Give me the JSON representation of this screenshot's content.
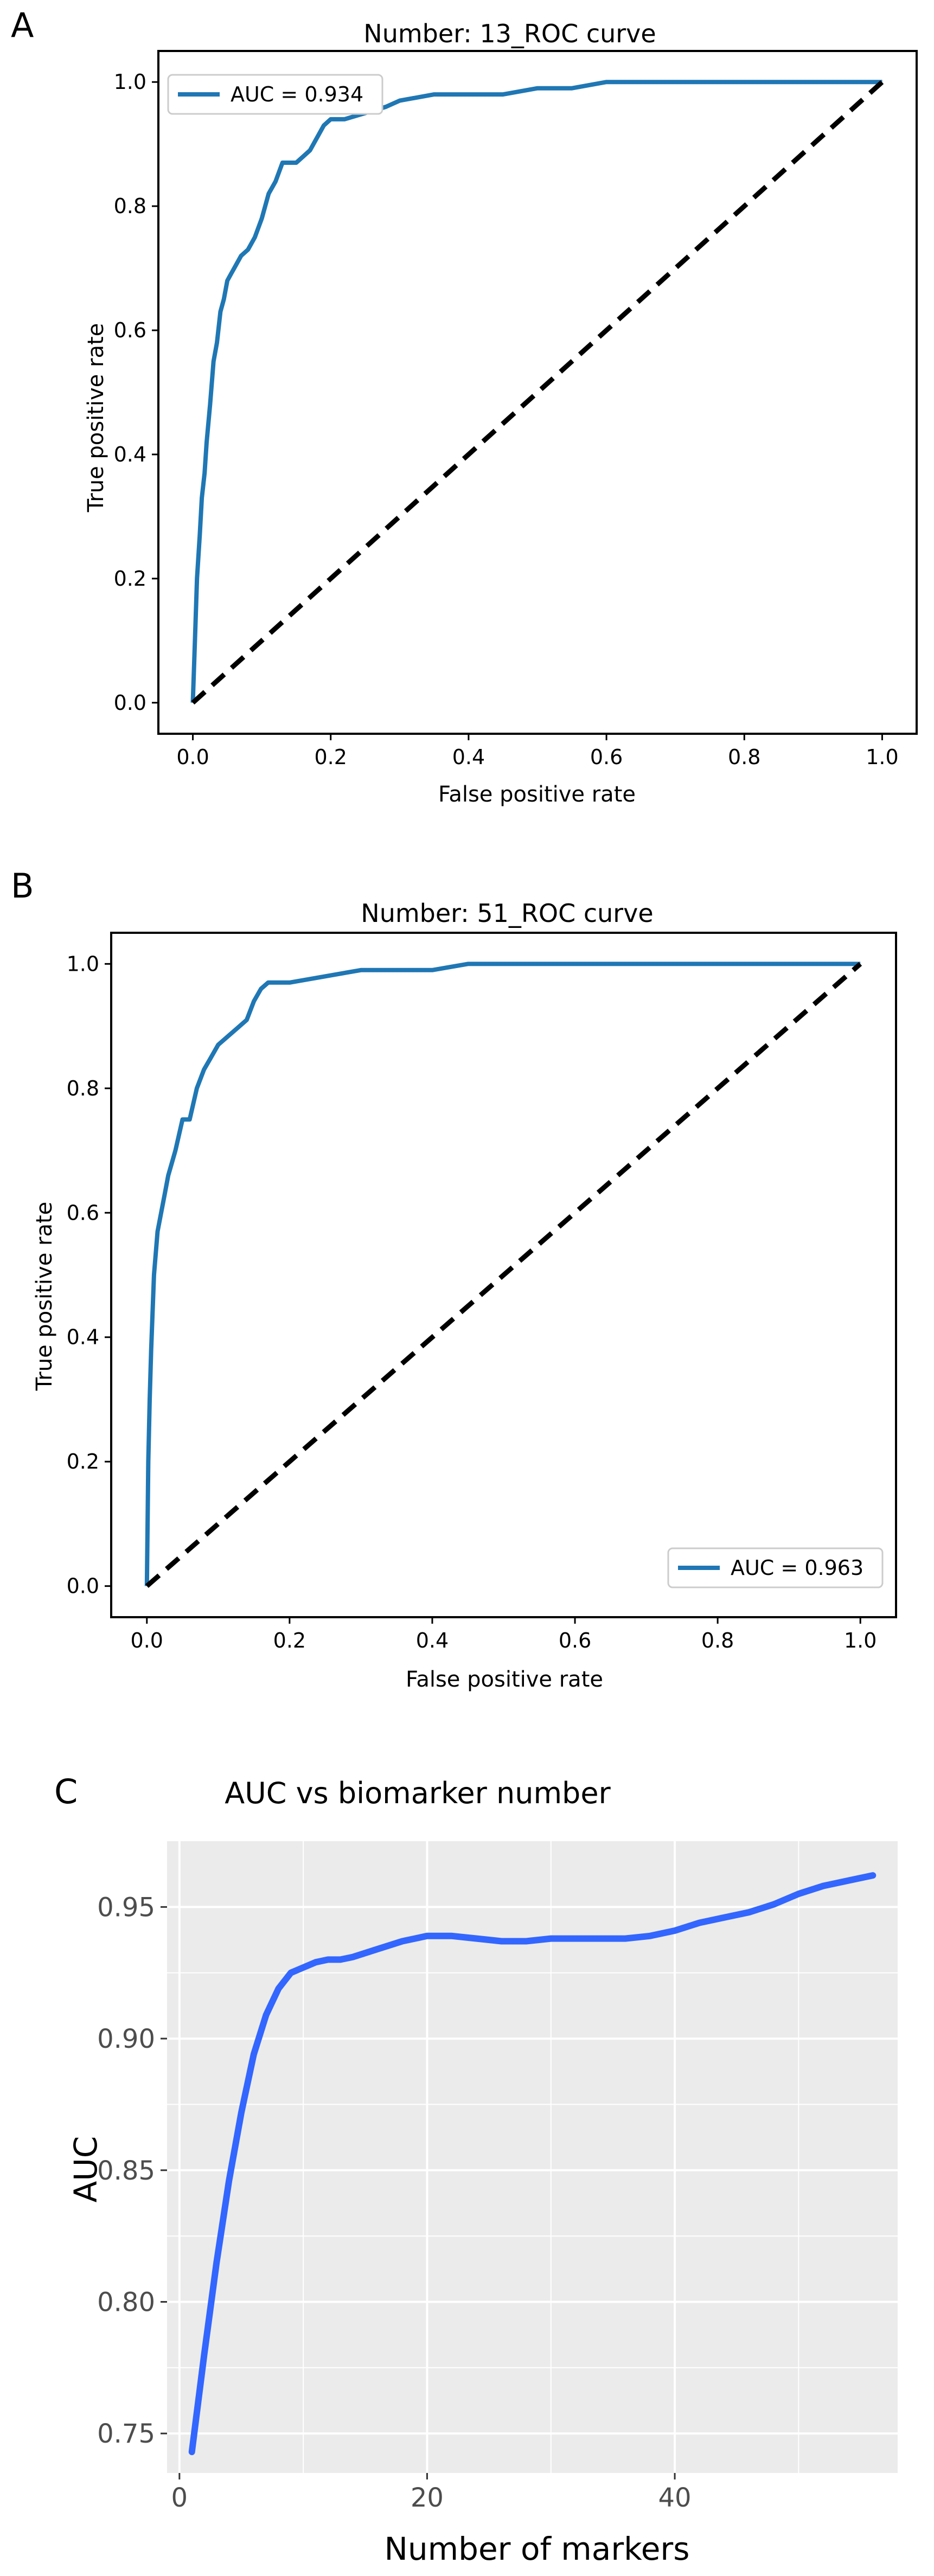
{
  "chart_data": [
    {
      "panel": "A",
      "type": "line",
      "title": "Number: 13_ROC curve",
      "xlabel": "False positive rate",
      "ylabel": "True positive rate",
      "xlim": [
        -0.05,
        1.05
      ],
      "ylim": [
        -0.05,
        1.05
      ],
      "xticks": [
        "0.0",
        "0.2",
        "0.4",
        "0.6",
        "0.8",
        "1.0"
      ],
      "yticks": [
        "0.0",
        "0.2",
        "0.4",
        "0.6",
        "0.8",
        "1.0"
      ],
      "legend": {
        "label": "AUC = 0.934",
        "position": "top-left"
      },
      "series": [
        {
          "name": "AUC = 0.934",
          "color": "#1f77b4",
          "x": [
            0,
            0.003,
            0.006,
            0.01,
            0.013,
            0.017,
            0.02,
            0.025,
            0.03,
            0.035,
            0.04,
            0.045,
            0.05,
            0.055,
            0.06,
            0.07,
            0.08,
            0.09,
            0.1,
            0.11,
            0.12,
            0.13,
            0.14,
            0.15,
            0.16,
            0.17,
            0.18,
            0.19,
            0.2,
            0.22,
            0.25,
            0.28,
            0.3,
            0.35,
            0.4,
            0.45,
            0.5,
            0.55,
            0.6,
            0.7,
            0.8,
            0.9,
            1.0
          ],
          "y": [
            0,
            0.1,
            0.2,
            0.27,
            0.33,
            0.37,
            0.42,
            0.48,
            0.55,
            0.58,
            0.63,
            0.65,
            0.68,
            0.69,
            0.7,
            0.72,
            0.73,
            0.75,
            0.78,
            0.82,
            0.84,
            0.87,
            0.87,
            0.87,
            0.88,
            0.89,
            0.91,
            0.93,
            0.94,
            0.94,
            0.95,
            0.96,
            0.97,
            0.98,
            0.98,
            0.98,
            0.99,
            0.99,
            1.0,
            1.0,
            1.0,
            1.0,
            1.0
          ]
        },
        {
          "name": "chance",
          "color": "#000000",
          "dashed": true,
          "x": [
            0,
            1
          ],
          "y": [
            0,
            1
          ]
        }
      ]
    },
    {
      "panel": "B",
      "type": "line",
      "title": "Number: 51_ROC curve",
      "xlabel": "False positive rate",
      "ylabel": "True positive rate",
      "xlim": [
        -0.05,
        1.05
      ],
      "ylim": [
        -0.05,
        1.05
      ],
      "xticks": [
        "0.0",
        "0.2",
        "0.4",
        "0.6",
        "0.8",
        "1.0"
      ],
      "yticks": [
        "0.0",
        "0.2",
        "0.4",
        "0.6",
        "0.8",
        "1.0"
      ],
      "legend": {
        "label": "AUC = 0.963",
        "position": "bottom-right"
      },
      "series": [
        {
          "name": "AUC = 0.963",
          "color": "#1f77b4",
          "x": [
            0,
            0.002,
            0.004,
            0.006,
            0.008,
            0.01,
            0.015,
            0.02,
            0.025,
            0.03,
            0.035,
            0.04,
            0.05,
            0.06,
            0.07,
            0.08,
            0.09,
            0.1,
            0.11,
            0.12,
            0.13,
            0.14,
            0.15,
            0.16,
            0.17,
            0.18,
            0.2,
            0.25,
            0.3,
            0.35,
            0.4,
            0.45,
            0.5,
            0.6,
            0.7,
            0.8,
            0.9,
            1.0
          ],
          "y": [
            0,
            0.2,
            0.3,
            0.38,
            0.44,
            0.5,
            0.57,
            0.6,
            0.63,
            0.66,
            0.68,
            0.7,
            0.75,
            0.75,
            0.8,
            0.83,
            0.85,
            0.87,
            0.88,
            0.89,
            0.9,
            0.91,
            0.94,
            0.96,
            0.97,
            0.97,
            0.97,
            0.98,
            0.99,
            0.99,
            0.99,
            1.0,
            1.0,
            1.0,
            1.0,
            1.0,
            1.0,
            1.0
          ]
        },
        {
          "name": "chance",
          "color": "#000000",
          "dashed": true,
          "x": [
            0,
            1
          ],
          "y": [
            0,
            1
          ]
        }
      ]
    },
    {
      "panel": "C",
      "type": "line",
      "title": "AUC vs biomarker number",
      "xlabel": "Number of markers",
      "ylabel": "AUC",
      "xlim": [
        -1,
        58
      ],
      "ylim": [
        0.735,
        0.975
      ],
      "xticks": [
        "0",
        "20",
        "40"
      ],
      "xtick_values": [
        0,
        20,
        40
      ],
      "yticks": [
        "0.75",
        "0.80",
        "0.85",
        "0.90",
        "0.95"
      ],
      "ytick_values": [
        0.75,
        0.8,
        0.85,
        0.9,
        0.95
      ],
      "series": [
        {
          "name": "AUC",
          "color": "#3366ff",
          "x": [
            1,
            2,
            3,
            4,
            5,
            6,
            7,
            8,
            9,
            10,
            11,
            12,
            13,
            14,
            16,
            18,
            20,
            22,
            24,
            26,
            28,
            30,
            32,
            34,
            36,
            38,
            40,
            42,
            44,
            46,
            48,
            50,
            52,
            54,
            56
          ],
          "y": [
            0.743,
            0.78,
            0.815,
            0.846,
            0.872,
            0.894,
            0.909,
            0.919,
            0.925,
            0.927,
            0.929,
            0.93,
            0.93,
            0.931,
            0.934,
            0.937,
            0.939,
            0.939,
            0.938,
            0.937,
            0.937,
            0.938,
            0.938,
            0.938,
            0.938,
            0.939,
            0.941,
            0.944,
            0.946,
            0.948,
            0.951,
            0.955,
            0.958,
            0.96,
            0.962
          ]
        }
      ]
    }
  ]
}
